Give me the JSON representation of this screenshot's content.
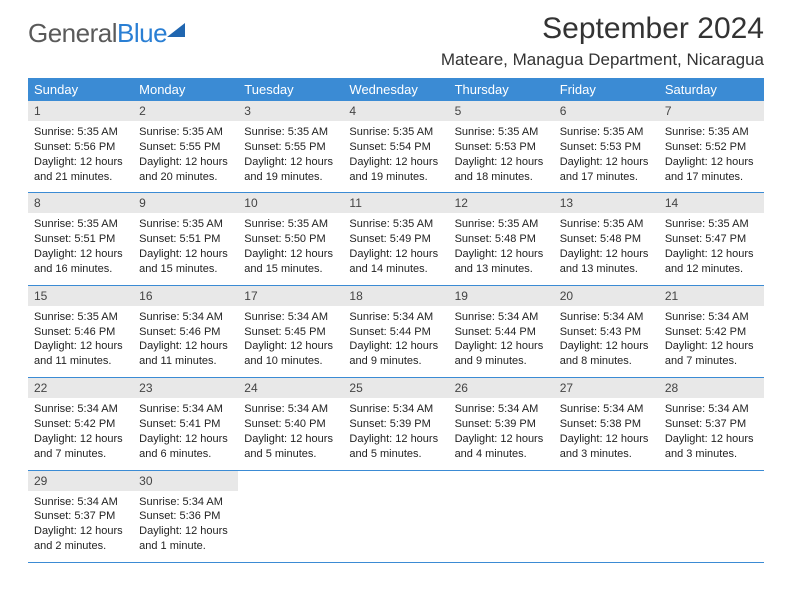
{
  "logo": {
    "text1": "General",
    "text2": "Blue"
  },
  "title": "September 2024",
  "location": "Mateare, Managua Department, Nicaragua",
  "weekdays": [
    "Sunday",
    "Monday",
    "Tuesday",
    "Wednesday",
    "Thursday",
    "Friday",
    "Saturday"
  ],
  "colors": {
    "header_bg": "#3b8bd4",
    "header_text": "#ffffff",
    "daynum_bg": "#e8e8e8",
    "rule": "#3b8bd4"
  },
  "days": [
    {
      "n": 1,
      "sunrise": "5:35 AM",
      "sunset": "5:56 PM",
      "daylight": "12 hours and 21 minutes."
    },
    {
      "n": 2,
      "sunrise": "5:35 AM",
      "sunset": "5:55 PM",
      "daylight": "12 hours and 20 minutes."
    },
    {
      "n": 3,
      "sunrise": "5:35 AM",
      "sunset": "5:55 PM",
      "daylight": "12 hours and 19 minutes."
    },
    {
      "n": 4,
      "sunrise": "5:35 AM",
      "sunset": "5:54 PM",
      "daylight": "12 hours and 19 minutes."
    },
    {
      "n": 5,
      "sunrise": "5:35 AM",
      "sunset": "5:53 PM",
      "daylight": "12 hours and 18 minutes."
    },
    {
      "n": 6,
      "sunrise": "5:35 AM",
      "sunset": "5:53 PM",
      "daylight": "12 hours and 17 minutes."
    },
    {
      "n": 7,
      "sunrise": "5:35 AM",
      "sunset": "5:52 PM",
      "daylight": "12 hours and 17 minutes."
    },
    {
      "n": 8,
      "sunrise": "5:35 AM",
      "sunset": "5:51 PM",
      "daylight": "12 hours and 16 minutes."
    },
    {
      "n": 9,
      "sunrise": "5:35 AM",
      "sunset": "5:51 PM",
      "daylight": "12 hours and 15 minutes."
    },
    {
      "n": 10,
      "sunrise": "5:35 AM",
      "sunset": "5:50 PM",
      "daylight": "12 hours and 15 minutes."
    },
    {
      "n": 11,
      "sunrise": "5:35 AM",
      "sunset": "5:49 PM",
      "daylight": "12 hours and 14 minutes."
    },
    {
      "n": 12,
      "sunrise": "5:35 AM",
      "sunset": "5:48 PM",
      "daylight": "12 hours and 13 minutes."
    },
    {
      "n": 13,
      "sunrise": "5:35 AM",
      "sunset": "5:48 PM",
      "daylight": "12 hours and 13 minutes."
    },
    {
      "n": 14,
      "sunrise": "5:35 AM",
      "sunset": "5:47 PM",
      "daylight": "12 hours and 12 minutes."
    },
    {
      "n": 15,
      "sunrise": "5:35 AM",
      "sunset": "5:46 PM",
      "daylight": "12 hours and 11 minutes."
    },
    {
      "n": 16,
      "sunrise": "5:34 AM",
      "sunset": "5:46 PM",
      "daylight": "12 hours and 11 minutes."
    },
    {
      "n": 17,
      "sunrise": "5:34 AM",
      "sunset": "5:45 PM",
      "daylight": "12 hours and 10 minutes."
    },
    {
      "n": 18,
      "sunrise": "5:34 AM",
      "sunset": "5:44 PM",
      "daylight": "12 hours and 9 minutes."
    },
    {
      "n": 19,
      "sunrise": "5:34 AM",
      "sunset": "5:44 PM",
      "daylight": "12 hours and 9 minutes."
    },
    {
      "n": 20,
      "sunrise": "5:34 AM",
      "sunset": "5:43 PM",
      "daylight": "12 hours and 8 minutes."
    },
    {
      "n": 21,
      "sunrise": "5:34 AM",
      "sunset": "5:42 PM",
      "daylight": "12 hours and 7 minutes."
    },
    {
      "n": 22,
      "sunrise": "5:34 AM",
      "sunset": "5:42 PM",
      "daylight": "12 hours and 7 minutes."
    },
    {
      "n": 23,
      "sunrise": "5:34 AM",
      "sunset": "5:41 PM",
      "daylight": "12 hours and 6 minutes."
    },
    {
      "n": 24,
      "sunrise": "5:34 AM",
      "sunset": "5:40 PM",
      "daylight": "12 hours and 5 minutes."
    },
    {
      "n": 25,
      "sunrise": "5:34 AM",
      "sunset": "5:39 PM",
      "daylight": "12 hours and 5 minutes."
    },
    {
      "n": 26,
      "sunrise": "5:34 AM",
      "sunset": "5:39 PM",
      "daylight": "12 hours and 4 minutes."
    },
    {
      "n": 27,
      "sunrise": "5:34 AM",
      "sunset": "5:38 PM",
      "daylight": "12 hours and 3 minutes."
    },
    {
      "n": 28,
      "sunrise": "5:34 AM",
      "sunset": "5:37 PM",
      "daylight": "12 hours and 3 minutes."
    },
    {
      "n": 29,
      "sunrise": "5:34 AM",
      "sunset": "5:37 PM",
      "daylight": "12 hours and 2 minutes."
    },
    {
      "n": 30,
      "sunrise": "5:34 AM",
      "sunset": "5:36 PM",
      "daylight": "12 hours and 1 minute."
    }
  ],
  "labels": {
    "sunrise": "Sunrise:",
    "sunset": "Sunset:",
    "daylight": "Daylight:"
  }
}
